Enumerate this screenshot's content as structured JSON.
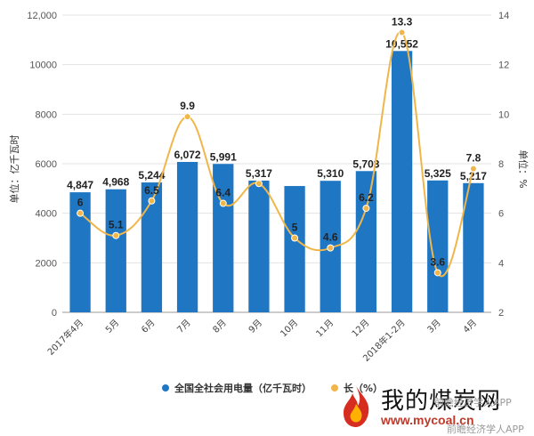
{
  "chart_data": {
    "type": "bar+line",
    "categories": [
      "2017年4月",
      "5月",
      "6月",
      "7月",
      "8月",
      "9月",
      "10月",
      "11月",
      "12月",
      "2018年1-2月",
      "3月",
      "4月"
    ],
    "series": [
      {
        "name": "全国全社会用电量（亿千瓦时）",
        "type": "bar",
        "axis": "left",
        "values": [
          4847,
          4968,
          5244,
          6072,
          5991,
          5317,
          5100,
          5310,
          5703,
          10552,
          5325,
          5217
        ],
        "labels": [
          "4,847",
          "4,968",
          "5,244",
          "6,072",
          "5,991",
          "5,317",
          "",
          "5,310",
          "5,703",
          "10,552",
          "5,325",
          "5,217"
        ]
      },
      {
        "name": "长（%）",
        "type": "line",
        "axis": "right",
        "values": [
          6,
          5.1,
          6.5,
          9.9,
          6.4,
          7.2,
          5,
          4.6,
          6.2,
          13.3,
          3.6,
          7.8
        ],
        "labels": [
          "6",
          "5.1",
          "6.5",
          "9.9",
          "6.4",
          "",
          "5",
          "4.6",
          "6.2",
          "13.3",
          "3.6",
          "7.8"
        ]
      }
    ],
    "y_left": {
      "label": "单位：亿千瓦时",
      "ylim": [
        0,
        12000
      ],
      "ticks": [
        "0",
        "2000",
        "4000",
        "6000",
        "8000",
        "10000",
        "12,000"
      ],
      "tick_values": [
        0,
        2000,
        4000,
        6000,
        8000,
        10000,
        12000
      ]
    },
    "y_right": {
      "label": "单位：%",
      "ylim": [
        2,
        14
      ],
      "ticks": [
        "2",
        "4",
        "6",
        "8",
        "10",
        "12",
        "14"
      ],
      "tick_values": [
        2,
        4,
        6,
        8,
        10,
        12,
        14
      ]
    },
    "colors": {
      "bar": "#1f77c4",
      "line": "#f0b64a",
      "grid": "#e3e3e3"
    },
    "legend_position": "bottom"
  },
  "watermark": {
    "brand": "我的煤炭网",
    "url": "www.mycoal.cn",
    "app_text_1": "前瞻经济学人APP",
    "app_text_2": "前瞻经济学人APP"
  }
}
